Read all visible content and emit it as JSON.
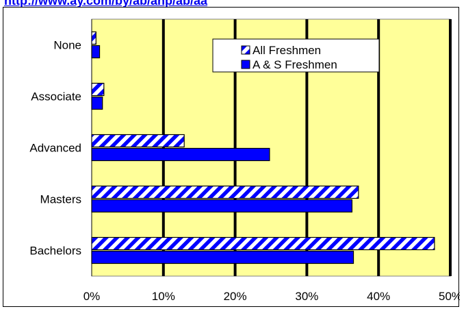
{
  "header_link": "http://www.ay.com/by/ab/ahp/ab/aa",
  "chart_data": {
    "type": "bar",
    "orientation": "horizontal",
    "categories": [
      "None",
      "Associate",
      "Advanced",
      "Masters",
      "Bachelors"
    ],
    "series": [
      {
        "name": "All Freshmen",
        "values": [
          0.6,
          1.7,
          12.9,
          37.2,
          47.8
        ],
        "pattern": "diagonal-stripes"
      },
      {
        "name": "A & S Freshmen",
        "values": [
          1.1,
          1.5,
          24.8,
          36.3,
          36.5
        ],
        "pattern": "solid"
      }
    ],
    "x_ticks": [
      "0%",
      "10%",
      "20%",
      "30%",
      "40%",
      "50%"
    ],
    "xlim": [
      0,
      50
    ],
    "grid": true,
    "legend_position": "top-right",
    "colors": {
      "plot_bg": "#ffff99",
      "bar": "#0000ff",
      "stripe_bg": "#ffffff",
      "grid": "#000000"
    }
  }
}
